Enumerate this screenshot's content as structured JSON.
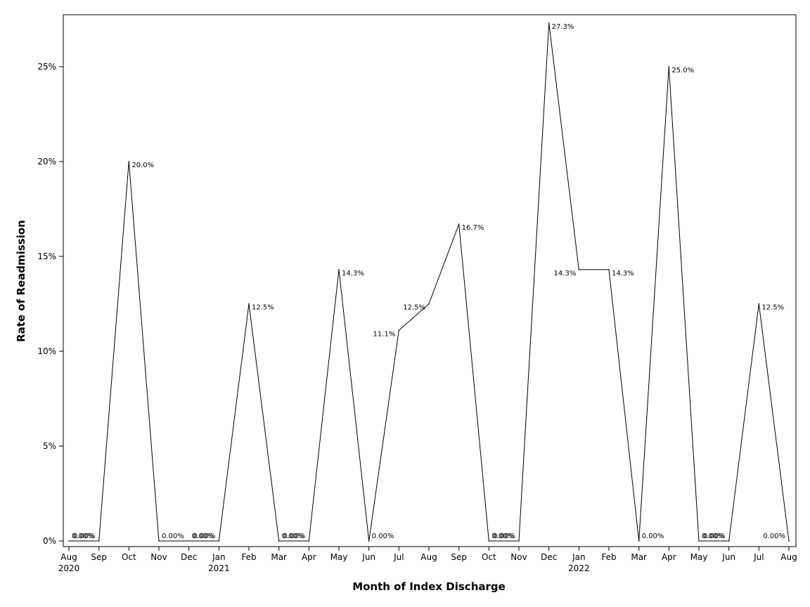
{
  "chart_data": {
    "type": "line",
    "title": "",
    "xlabel": "Month of Index Discharge",
    "ylabel": "Rate of Readmission",
    "ylim": [
      0,
      27.7
    ],
    "y_ticks": [
      "0%",
      "5%",
      "10%",
      "15%",
      "20%",
      "25%"
    ],
    "y_tick_values": [
      0,
      5,
      10,
      15,
      20,
      25
    ],
    "grid": false,
    "legend": "none",
    "line_color": "#000000",
    "categories": [
      "Aug",
      "Sep",
      "Oct",
      "Nov",
      "Dec",
      "Jan",
      "Feb",
      "Mar",
      "Apr",
      "May",
      "Jun",
      "Jul",
      "Aug",
      "Sep",
      "Oct",
      "Nov",
      "Dec",
      "Jan",
      "Feb",
      "Mar",
      "Apr",
      "May",
      "Jun",
      "Jul",
      "Aug"
    ],
    "year_labels": [
      "2020",
      "",
      "",
      "",
      "",
      "2021",
      "",
      "",
      "",
      "",
      "",
      "",
      "",
      "",
      "",
      "",
      "",
      "2022",
      "",
      "",
      "",
      "",
      "",
      "",
      ""
    ],
    "series": [
      {
        "values": [
          0,
          0,
          20.0,
          0,
          0,
          0,
          12.5,
          0,
          0,
          14.3,
          0,
          11.1,
          12.5,
          16.7,
          0,
          0,
          27.3,
          14.3,
          14.3,
          0,
          25.0,
          0,
          0,
          12.5,
          0
        ],
        "labels": [
          "0.00%",
          "0.00%",
          "20.0%",
          "0.00%",
          "0.00%",
          "0.00%",
          "12.5%",
          "0.00%",
          "0.00%",
          "14.3%",
          "0.00%",
          "11.1%",
          "12.5%",
          "16.7%",
          "0.00%",
          "0.00%",
          "27.3%",
          "14.3%",
          "14.3%",
          "0.00%",
          "25.0%",
          "0.00%",
          "0.00%",
          "12.5%",
          "0.00%"
        ]
      }
    ]
  }
}
